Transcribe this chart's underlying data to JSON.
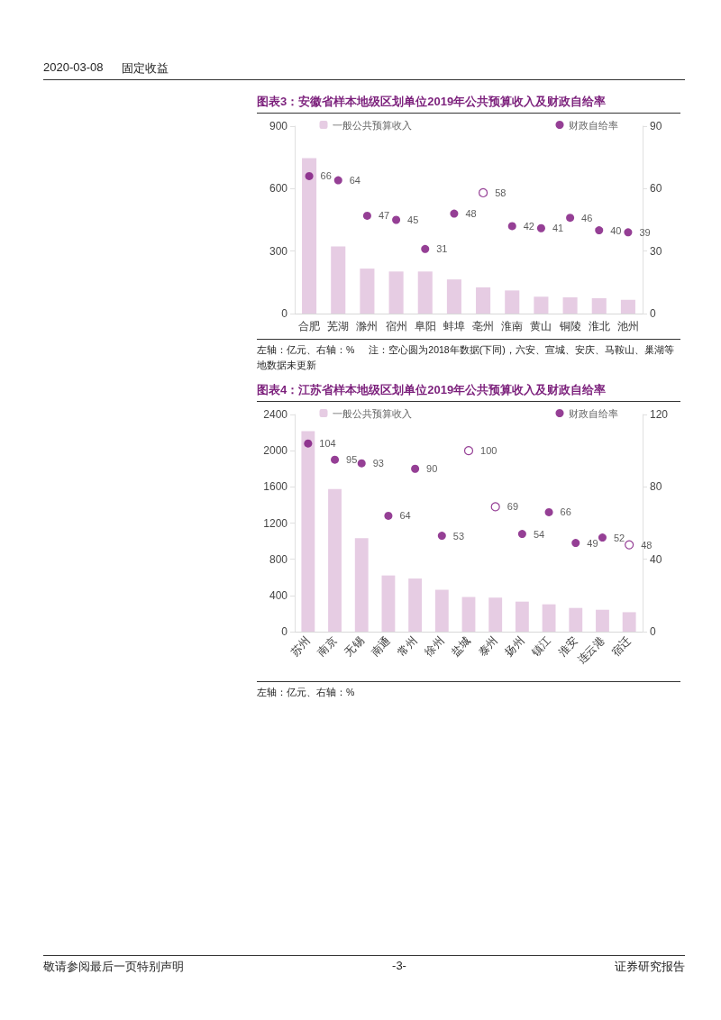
{
  "chart_data": [
    {
      "type": "other",
      "annotations": [
        "2020-03-08",
        "固定收益"
      ]
    },
    {
      "type": "bar",
      "title": "图表3：安徽省样本地级区划单位2019年公共预算收入及财政自给率",
      "categories": [
        "合肥",
        "芜湖",
        "滁州",
        "宿州",
        "阜阳",
        "蚌埠",
        "亳州",
        "淮南",
        "黄山",
        "铜陵",
        "淮北",
        "池州"
      ],
      "series": [
        {
          "name": "一般公共预算收入",
          "type": "bar",
          "color": "#e6cce3",
          "values": [
            746,
            322,
            216,
            202,
            202,
            164,
            126,
            111,
            81,
            78,
            74,
            66
          ]
        },
        {
          "name": "财政自给率",
          "type": "scatter",
          "axis": "y2",
          "color": "#7b0f7b",
          "values": [
            66,
            64,
            47,
            45,
            31,
            48,
            null,
            42,
            41,
            46,
            40,
            39
          ],
          "value_labels": [
            "66",
            "64",
            "47",
            "45",
            "31",
            "48",
            null,
            "42",
            "41",
            "46",
            "40",
            "39"
          ]
        },
        {
          "type": "scatter",
          "axis": "y2",
          "color": "#7b0f7b",
          "values": [
            null,
            null,
            null,
            null,
            null,
            null,
            58,
            null,
            null,
            null,
            null,
            null
          ],
          "value_labels": [
            null,
            null,
            null,
            null,
            null,
            null,
            "58",
            null,
            null,
            null,
            null,
            null
          ]
        }
      ],
      "ylim": [
        0,
        900
      ],
      "yticks": [
        0,
        300,
        600,
        900
      ],
      "y2lim": [
        0,
        90
      ],
      "y2ticks": [
        0,
        30,
        60,
        90
      ],
      "grid": false,
      "legend": "top",
      "marker": "circle",
      "annotations": [
        "左轴：亿元、右轴：%",
        "注：空心圆为2018年数据(下同)，六安、宣城、安庆、马鞍山、巢湖等地数据未更新"
      ]
    },
    {
      "type": "bar",
      "title": "图表4：江苏省样本地级区划单位2019年公共预算收入及财政自给率",
      "categories": [
        "苏州",
        "南京",
        "无锡",
        "南通",
        "常州",
        "徐州",
        "盐城",
        "泰州",
        "扬州",
        "镇江",
        "淮安",
        "连云港",
        "宿迁"
      ],
      "series": [
        {
          "name": "一般公共预算收入",
          "type": "bar",
          "color": "#e6cce3",
          "values": [
            2215,
            1577,
            1034,
            621,
            587,
            463,
            383,
            376,
            332,
            302,
            262,
            242,
            215
          ]
        },
        {
          "name": "财政自给率",
          "type": "scatter",
          "axis": "y2",
          "color": "#7b0f7b",
          "values": [
            104,
            95,
            93,
            64,
            90,
            53,
            null,
            null,
            54,
            66,
            49,
            52,
            null
          ],
          "value_labels": [
            "104",
            "95",
            "93",
            "64",
            "90",
            "53",
            null,
            null,
            "54",
            "66",
            "49",
            "52",
            null
          ]
        },
        {
          "type": "scatter",
          "axis": "y2",
          "color": "#7b0f7b",
          "values": [
            null,
            null,
            null,
            null,
            null,
            null,
            100,
            69,
            null,
            null,
            null,
            null,
            48
          ],
          "value_labels": [
            null,
            null,
            null,
            null,
            null,
            null,
            "100",
            "69",
            null,
            null,
            null,
            null,
            "48"
          ]
        }
      ],
      "ylim": [
        0,
        2400
      ],
      "yticks": [
        0,
        400,
        800,
        1200,
        1600,
        2000,
        2400
      ],
      "y2lim": [
        0,
        120
      ],
      "y2ticks": [
        0,
        40,
        80,
        120
      ],
      "grid": false,
      "legend": "top",
      "marker": "circle",
      "annotations": [
        "左轴：亿元、右轴：%"
      ]
    },
    {
      "type": "other",
      "annotations": [
        "敬请参阅最后一页特别声明",
        "-3-",
        "证券研究报告"
      ]
    }
  ]
}
